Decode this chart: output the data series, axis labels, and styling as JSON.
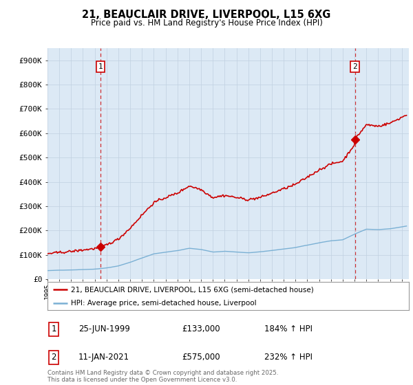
{
  "title": "21, BEAUCLAIR DRIVE, LIVERPOOL, L15 6XG",
  "subtitle": "Price paid vs. HM Land Registry's House Price Index (HPI)",
  "ylabel_ticks": [
    "£0",
    "£100K",
    "£200K",
    "£300K",
    "£400K",
    "£500K",
    "£600K",
    "£700K",
    "£800K",
    "£900K"
  ],
  "ytick_values": [
    0,
    100000,
    200000,
    300000,
    400000,
    500000,
    600000,
    700000,
    800000,
    900000
  ],
  "ylim": [
    0,
    950000
  ],
  "xlim_start": 1995.0,
  "xlim_end": 2025.6,
  "xticks": [
    1995,
    1996,
    1997,
    1998,
    1999,
    2000,
    2001,
    2002,
    2003,
    2004,
    2005,
    2006,
    2007,
    2008,
    2009,
    2010,
    2011,
    2012,
    2013,
    2014,
    2015,
    2016,
    2017,
    2018,
    2019,
    2020,
    2021,
    2022,
    2023,
    2024,
    2025
  ],
  "property_color": "#cc0000",
  "hpi_color": "#7ab0d4",
  "marker1_date": 1999.48,
  "marker1_value": 133000,
  "marker1_label": "1",
  "marker2_date": 2021.03,
  "marker2_value": 575000,
  "marker2_label": "2",
  "vline1_x": 1999.48,
  "vline2_x": 2021.03,
  "legend_property": "21, BEAUCLAIR DRIVE, LIVERPOOL, L15 6XG (semi-detached house)",
  "legend_hpi": "HPI: Average price, semi-detached house, Liverpool",
  "annotation1_date": "25-JUN-1999",
  "annotation1_price": "£133,000",
  "annotation1_hpi": "184% ↑ HPI",
  "annotation2_date": "11-JAN-2021",
  "annotation2_price": "£575,000",
  "annotation2_hpi": "232% ↑ HPI",
  "footer": "Contains HM Land Registry data © Crown copyright and database right 2025.\nThis data is licensed under the Open Government Licence v3.0.",
  "background_color": "#ffffff",
  "chart_bg_color": "#dce9f5",
  "grid_color": "#c0d0e0"
}
